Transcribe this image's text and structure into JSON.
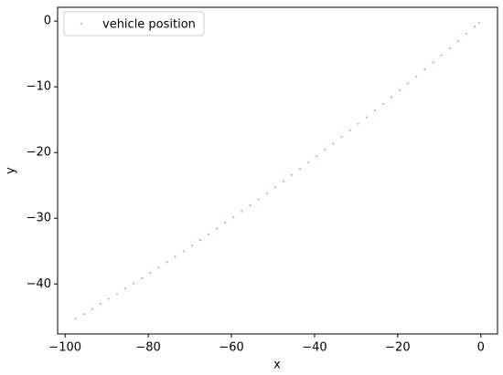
{
  "chart_data": {
    "type": "scatter",
    "xlabel": "x",
    "ylabel": "y",
    "legend": "upper left",
    "xlim": [
      -101.8,
      4.0
    ],
    "ylim": [
      -47.6,
      2.1
    ],
    "xticks": [
      {
        "value": -100,
        "label": "−100"
      },
      {
        "value": -80,
        "label": "−80"
      },
      {
        "value": -60,
        "label": "−60"
      },
      {
        "value": -40,
        "label": "−40"
      },
      {
        "value": -20,
        "label": "−20"
      },
      0
    ],
    "yticks": [
      {
        "value": -40,
        "label": "−40"
      },
      {
        "value": -30,
        "label": "−30"
      },
      {
        "value": -20,
        "label": "−20"
      },
      {
        "value": -10,
        "label": "−10"
      },
      0
    ],
    "series": [
      {
        "name": "vehicle position",
        "color": "#7fb8e8",
        "x": [
          -97.5,
          -95.5,
          -93.5,
          -91.5,
          -89.5,
          -87.5,
          -85.5,
          -83.5,
          -81.5,
          -79.5,
          -77.5,
          -75.5,
          -73.5,
          -71.5,
          -69.5,
          -67.5,
          -65.5,
          -63.5,
          -61.5,
          -59.5,
          -57.5,
          -55.5,
          -53.5,
          -51.5,
          -49.5,
          -47.5,
          -45.5,
          -43.5,
          -41.5,
          -39.5,
          -37.5,
          -35.5,
          -33.5,
          -31.5,
          -29.5,
          -27.5,
          -25.5,
          -23.5,
          -21.5,
          -19.5,
          -17.5,
          -15.5,
          -13.5,
          -11.5,
          -9.5,
          -7.5,
          -5.5,
          -3.5,
          -1.5,
          -0.5
        ],
        "values": [
          -45.3,
          -44.56,
          -43.8,
          -43.04,
          -42.28,
          -41.5,
          -40.71,
          -39.92,
          -39.12,
          -38.31,
          -37.5,
          -36.68,
          -35.85,
          -35.01,
          -34.17,
          -33.31,
          -32.45,
          -31.58,
          -30.71,
          -29.82,
          -28.93,
          -28.03,
          -27.12,
          -26.21,
          -25.29,
          -24.36,
          -23.42,
          -22.47,
          -21.52,
          -20.56,
          -19.59,
          -18.62,
          -17.63,
          -16.63,
          -15.64,
          -14.63,
          -13.61,
          -12.59,
          -11.56,
          -10.52,
          -9.48,
          -8.43,
          -7.36,
          -6.29,
          -5.22,
          -4.14,
          -3.04,
          -1.94,
          -0.84,
          -0.28
        ]
      }
    ]
  }
}
